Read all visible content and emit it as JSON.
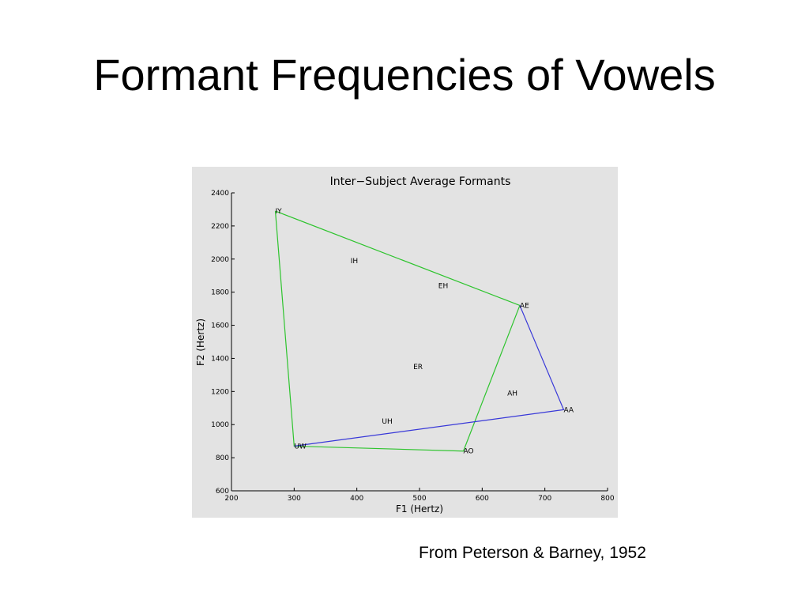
{
  "header": {
    "title": "Formant Frequencies of Vowels"
  },
  "chart_data": {
    "type": "scatter",
    "title": "Inter−Subject Average Formants",
    "x_label": "F1 (Hertz)",
    "y_label": "F2 (Hertz)",
    "categories": [
      "IY",
      "IH",
      "EH",
      "AE",
      "AH",
      "AA",
      "ER",
      "UH",
      "UW",
      "AO"
    ],
    "x": [
      270,
      390,
      530,
      660,
      640,
      730,
      490,
      440,
      300,
      570
    ],
    "values": [
      2290,
      1990,
      1840,
      1720,
      1190,
      1090,
      1350,
      1020,
      870,
      840
    ],
    "series": [
      {
        "color": "#2ec42e",
        "x": [
          270,
          660,
          570,
          300,
          270
        ],
        "values": [
          2290,
          1720,
          840,
          870,
          2290
        ]
      },
      {
        "color": "#3838d8",
        "x": [
          300,
          730,
          660
        ],
        "values": [
          870,
          1090,
          1720
        ]
      }
    ],
    "xlim": [
      200,
      800
    ],
    "ylim": [
      600,
      2400
    ],
    "xticks": [
      200,
      300,
      400,
      500,
      600,
      700,
      800
    ],
    "yticks": [
      600,
      800,
      1000,
      1200,
      1400,
      1600,
      1800,
      2000,
      2200,
      2400
    ]
  },
  "caption": "From Peterson & Barney, 1952"
}
